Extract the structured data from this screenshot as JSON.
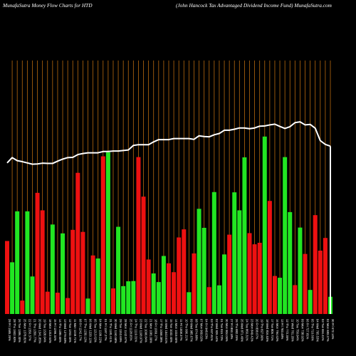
{
  "header": {
    "left": "MunafaSutra  Money Flow  Charts for HTD",
    "right": "(John  Hancock Tax Advantaged Dividend Income   Fund) MunafaSutra.com"
  },
  "colors": {
    "background": "#000000",
    "grid": "#b86a10",
    "up": "#22e622",
    "down": "#ee1111",
    "line": "#ffffff",
    "tick_text": "#ffffff"
  },
  "chart_data": {
    "type": "bar",
    "title": "",
    "xlabel": "",
    "ylabel": "",
    "ylim": [
      0,
      100
    ],
    "line_ylim": [
      0,
      100
    ],
    "categories": [
      "29 Fri Nov 2024",
      "28 Thu Nov 2024",
      "26 Tue Nov 2024",
      "25 Mon Nov 2024",
      "22 Fri Nov 2024",
      "21 Thu Nov 2024",
      "20 Wed Nov 2024",
      "19 Tue Nov 2024",
      "18 Mon Nov 2024",
      "15 Fri Nov 2024",
      "14 Thu Nov 2024",
      "13 Wed Nov 2024",
      "12 Tue Nov 2024",
      "11 Mon Nov 2024",
      "08 Fri Nov 2024",
      "07 Thu Nov 2024",
      "06 Wed Nov 2024",
      "05 Tue Nov 2024",
      "04 Mon Nov 2024",
      "01 Fri Nov 2024",
      "31 Thu Oct 2024",
      "30 Wed Oct 2024",
      "29 Tue Oct 2024",
      "28 Mon Oct 2024",
      "25 Fri Oct 2024",
      "24 Thu Oct 2024",
      "23 Wed Oct 2024",
      "22 Tue Oct 2024",
      "21 Mon Oct 2024",
      "18 Fri Oct 2024",
      "17 Thu Oct 2024",
      "16 Wed Oct 2024",
      "15 Tue Oct 2024",
      "14 Mon Oct 2024",
      "11 Fri Oct 2024",
      "10 Thu Oct 2024",
      "09 Wed Oct 2024",
      "08 Tue Oct 2024",
      "07 Mon Oct 2024",
      "04 Fri Oct 2024",
      "03 Thu Oct 2024",
      "02 Wed Oct 2024",
      "01 Tue Oct 2024",
      "30 Mon Sep 2024",
      "27 Fri Sep 2024",
      "26 Thu Sep 2024",
      "25 Wed Sep 2024",
      "24 Tue Sep 2024",
      "23 Mon Sep 2024",
      "20 Fri Sep 2024",
      "19 Thu Sep 2024",
      "18 Wed Sep 2024",
      "17 Tue Sep 2024",
      "16 Mon Sep 2024",
      "13 Fri Sep 2024",
      "12 Thu Sep 2024",
      "11 Wed Sep 2024",
      "10 Tue Sep 2024",
      "09 Mon Sep 2024",
      "06 Fri Sep 2024",
      "05 Thu Sep 2024",
      "04 Wed Sep 2024",
      "03 Tue Sep 2024",
      "02 Mon Sep 2024",
      "30 Fri Aug 2024"
    ],
    "tick_labels": [
      "29 Fri 1585.26%",
      "28 Thu 1502.93%",
      "26 Tue 1386.30%",
      "25 Mon 1378.81%",
      "22 Fri 1356.37%",
      "21 Thu 1356.77%",
      "20 Wed 1341.85%",
      "19 Tue 1328.04%",
      "18 Mon 1313.64%",
      "15 Fri 1299.34%",
      "14 Thu 1285.65%",
      "13 Wed 1279.68%",
      "12 Tue 1263.46%",
      "11 Mon 1249.71%",
      "08 Fri 1242.17%",
      "07 Thu 1230.12%",
      "06 Wed 1220.11%",
      "05 Tue 1213.62%",
      "04 Mon 1199.22%",
      "01 Fri 1187.27%",
      "31 Thu 1181.61%",
      "30 Wed 1160.58%",
      "29 Tue 1153.69%",
      "28 Mon 1142.97%",
      "25 Fri 1128.05%",
      "24 Thu 1119.31%",
      "23 Wed 1108.97%",
      "22 Tue 1096.84%",
      "21 Mon 1081.09%",
      "18 Fri 1069.27%",
      "17 Thu 1058.28%",
      "16 Wed 1043.61%",
      "15 Tue 1032.40%",
      "14 Mon 1019.55%",
      "11 Fri 1008.37%",
      "10 Thu 996.21%",
      "09 Wed 985.67%",
      "08 Tue 974.88%",
      "07 Mon 960.02%",
      "04 Fri 948.63%",
      "03 Thu 937.81%",
      "02 Wed 926.44%",
      "01 Tue 915.72%",
      "30 Mon 904.06%",
      "27 Fri 893.18%",
      "26 Thu 882.25%",
      "25 Wed 871.49%",
      "24 Tue 860.31%",
      "23 Mon 849.42%",
      "20 Fri 838.67%",
      "19 Thu 827.90%",
      "18 Wed 816.53%",
      "17 Tue 805.71%",
      "16 Mon 794.62%",
      "13 Fri 783.48%",
      "12 Thu 772.35%",
      "11 Wed 761.20%",
      "10 Tue 750.04%",
      "09 Mon 738.92%",
      "06 Fri 727.81%",
      "05 Thu 716.66%",
      "04 Wed 705.53%",
      "03 Tue 694.41%",
      "02 Mon 683.27%",
      "30 Fri 672.14%"
    ],
    "colors": [
      "down",
      "up",
      "up",
      "down",
      "up",
      "up",
      "down",
      "down",
      "down",
      "up",
      "down",
      "up",
      "down",
      "down",
      "down",
      "down",
      "up",
      "down",
      "up",
      "down",
      "up",
      "down",
      "up",
      "up",
      "up",
      "up",
      "down",
      "down",
      "down",
      "up",
      "up",
      "up",
      "down",
      "down",
      "down",
      "down",
      "up",
      "down",
      "up",
      "up",
      "down",
      "up",
      "up",
      "up",
      "down",
      "up",
      "up",
      "up",
      "down",
      "down",
      "down",
      "up",
      "down",
      "down",
      "up",
      "up",
      "up",
      "down",
      "up",
      "down",
      "up",
      "down",
      "down",
      "down",
      "up"
    ],
    "values": [
      28.8,
      20.4,
      40.5,
      5.3,
      40.5,
      14.8,
      47.8,
      40.9,
      8.8,
      35.3,
      8.4,
      31.8,
      6.3,
      33.2,
      55.7,
      32.4,
      6.1,
      23.1,
      21.9,
      62.2,
      63.8,
      10.1,
      34.4,
      11.0,
      12.9,
      13.0,
      61.9,
      46.3,
      21.5,
      16.0,
      12.6,
      22.9,
      20.0,
      16.5,
      30.2,
      33.4,
      8.6,
      23.9,
      41.5,
      34.0,
      10.6,
      48.1,
      11.3,
      23.5,
      31.3,
      48.0,
      40.9,
      61.8,
      31.9,
      27.5,
      28.1,
      70.0,
      44.6,
      15.0,
      14.3,
      61.9,
      40.2,
      11.4,
      34.1,
      23.7,
      9.5,
      39.0,
      25.0,
      30.0,
      6.8
    ],
    "line": [
      59.6,
      61.7,
      60.5,
      60.1,
      59.6,
      59.1,
      59.2,
      59.5,
      59.4,
      59.4,
      60.3,
      61.1,
      61.7,
      61.8,
      62.9,
      63.3,
      63.6,
      63.6,
      63.6,
      64.1,
      64.1,
      64.3,
      64.3,
      64.5,
      64.7,
      66.5,
      66.8,
      66.8,
      66.8,
      67.9,
      68.8,
      68.8,
      68.8,
      69.2,
      69.2,
      69.2,
      69.2,
      68.9,
      70.3,
      70.0,
      69.9,
      70.7,
      71.2,
      72.5,
      72.5,
      72.9,
      73.4,
      73.4,
      73.1,
      73.4,
      74.1,
      74.2,
      74.6,
      74.9,
      74.0,
      73.2,
      73.9,
      75.5,
      75.8,
      74.6,
      74.8,
      73.3,
      68.4,
      66.9,
      66.2
    ],
    "grid": true,
    "legend": "none"
  }
}
